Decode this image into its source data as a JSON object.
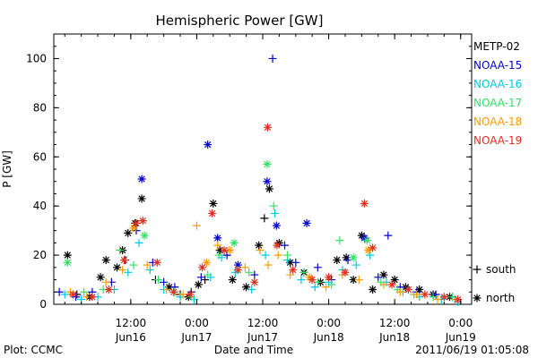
{
  "chart_data": {
    "type": "scatter",
    "title": "Hemispheric Power [GW]",
    "ylabel": "P [GW]",
    "xlabel": "Date and Time",
    "footer_left": "Plot: CCMC",
    "footer_right": "2011/06/19 01:05:08",
    "ylim": [
      0,
      110
    ],
    "yticks": [
      0,
      20,
      40,
      60,
      80,
      100
    ],
    "xlim_hours": [
      -2,
      74
    ],
    "xticks": [
      {
        "hours": 12,
        "time": "12:00",
        "date": "Jun16"
      },
      {
        "hours": 24,
        "time": "0:00",
        "date": "Jun17"
      },
      {
        "hours": 36,
        "time": "12:00",
        "date": "Jun17"
      },
      {
        "hours": 48,
        "time": "0:00",
        "date": "Jun18"
      },
      {
        "hours": 60,
        "time": "12:00",
        "date": "Jun18"
      },
      {
        "hours": 72,
        "time": "0:00",
        "date": "Jun19"
      }
    ],
    "x_axis_start": "2011-06-16 00:00 minus 2h",
    "marker_legend": [
      {
        "symbol": "+",
        "label": "south"
      },
      {
        "symbol": "*",
        "label": "north"
      }
    ],
    "legend_placement": "right",
    "series": [
      {
        "name": "METP-02",
        "color": "#000000",
        "points": [
          [
            0.5,
            20,
            "*"
          ],
          [
            2.2,
            4,
            "+"
          ],
          [
            4.5,
            3,
            "*"
          ],
          [
            6.5,
            11,
            "*"
          ],
          [
            7.5,
            18,
            "*"
          ],
          [
            9.5,
            15,
            "*"
          ],
          [
            10.5,
            22,
            "*"
          ],
          [
            11.5,
            29,
            "*"
          ],
          [
            12.8,
            33,
            "*"
          ],
          [
            14.0,
            43,
            "*"
          ],
          [
            16.5,
            10,
            "+"
          ],
          [
            19.0,
            7,
            "*"
          ],
          [
            21.0,
            4,
            "+"
          ],
          [
            22.5,
            3,
            "*"
          ],
          [
            24.3,
            8,
            "*"
          ],
          [
            25.5,
            10,
            "+"
          ],
          [
            27.0,
            41,
            "*"
          ],
          [
            28.2,
            22,
            "*"
          ],
          [
            30.5,
            10,
            "*"
          ],
          [
            33.0,
            7,
            "*"
          ],
          [
            35.3,
            24,
            "*"
          ],
          [
            36.3,
            35,
            "+"
          ],
          [
            37.2,
            47,
            "*"
          ],
          [
            39.0,
            25,
            "*"
          ],
          [
            41.0,
            17,
            "*"
          ],
          [
            43.5,
            13,
            "*"
          ],
          [
            46.5,
            9,
            "*"
          ],
          [
            49.5,
            18,
            "*"
          ],
          [
            51.2,
            19,
            "*"
          ],
          [
            52.5,
            10,
            "*"
          ],
          [
            54.0,
            28,
            "*"
          ],
          [
            56.0,
            6,
            "*"
          ],
          [
            58.0,
            12,
            "*"
          ],
          [
            60.0,
            10,
            "*"
          ],
          [
            62.0,
            7,
            "*"
          ],
          [
            64.5,
            6,
            "*"
          ],
          [
            67.0,
            4,
            "*"
          ],
          [
            70.0,
            3,
            "*"
          ]
        ]
      },
      {
        "name": "NOAA-15",
        "color": "#0000cc",
        "points": [
          [
            -1.0,
            5,
            "+"
          ],
          [
            2.0,
            3,
            "+"
          ],
          [
            5.0,
            5,
            "+"
          ],
          [
            8.5,
            9,
            "+"
          ],
          [
            11.0,
            18,
            "+"
          ],
          [
            13.0,
            30,
            "+"
          ],
          [
            14.0,
            51,
            "*"
          ],
          [
            16.0,
            17,
            "+"
          ],
          [
            18.0,
            9,
            "+"
          ],
          [
            20.0,
            7,
            "+"
          ],
          [
            23.0,
            5,
            "+"
          ],
          [
            24.8,
            11,
            "+"
          ],
          [
            26.0,
            65,
            "*"
          ],
          [
            27.8,
            27,
            "*"
          ],
          [
            29.5,
            20,
            "+"
          ],
          [
            31.5,
            16,
            "*"
          ],
          [
            34.5,
            12,
            "+"
          ],
          [
            36.8,
            50,
            "*"
          ],
          [
            37.8,
            100,
            "+"
          ],
          [
            38.5,
            32,
            "*"
          ],
          [
            40.0,
            24,
            "+"
          ],
          [
            42.0,
            17,
            "+"
          ],
          [
            44.0,
            33,
            "*"
          ],
          [
            46.0,
            15,
            "+"
          ],
          [
            48.5,
            10,
            "+"
          ],
          [
            51.5,
            18,
            "+"
          ],
          [
            54.5,
            27,
            "*"
          ],
          [
            57.0,
            11,
            "+"
          ],
          [
            58.8,
            28,
            "+"
          ],
          [
            61.0,
            7,
            "+"
          ],
          [
            64.0,
            5,
            "+"
          ],
          [
            67.5,
            4,
            "+"
          ],
          [
            70.5,
            3,
            "+"
          ]
        ]
      },
      {
        "name": "NOAA-16",
        "color": "#00c8e0",
        "points": [
          [
            0.0,
            4,
            "+"
          ],
          [
            3.0,
            2,
            "+"
          ],
          [
            6.0,
            3,
            "+"
          ],
          [
            9.0,
            6,
            "+"
          ],
          [
            11.5,
            13,
            "+"
          ],
          [
            13.5,
            25,
            "+"
          ],
          [
            15.5,
            14,
            "+"
          ],
          [
            18.0,
            6,
            "+"
          ],
          [
            21.0,
            3,
            "+"
          ],
          [
            23.5,
            2,
            "+"
          ],
          [
            26.5,
            11,
            "+"
          ],
          [
            28.5,
            19,
            "+"
          ],
          [
            31.0,
            13,
            "+"
          ],
          [
            34.0,
            6,
            "+"
          ],
          [
            36.5,
            20,
            "+"
          ],
          [
            38.2,
            37,
            "+"
          ],
          [
            40.5,
            18,
            "+"
          ],
          [
            43.0,
            10,
            "+"
          ],
          [
            45.5,
            7,
            "+"
          ],
          [
            48.0,
            9,
            "+"
          ],
          [
            50.5,
            14,
            "+"
          ],
          [
            53.0,
            16,
            "+"
          ],
          [
            55.5,
            20,
            "+"
          ],
          [
            58.5,
            9,
            "+"
          ],
          [
            61.5,
            5,
            "+"
          ],
          [
            64.5,
            3,
            "+"
          ],
          [
            68.5,
            2,
            "+"
          ],
          [
            71.5,
            1,
            "+"
          ]
        ]
      },
      {
        "name": "NOAA-17",
        "color": "#33e066",
        "points": [
          [
            0.5,
            17,
            "*"
          ],
          [
            3.5,
            5,
            "+"
          ],
          [
            7.0,
            6,
            "+"
          ],
          [
            10.0,
            22,
            "+"
          ],
          [
            12.5,
            16,
            "+"
          ],
          [
            14.5,
            28,
            "*"
          ],
          [
            17.0,
            10,
            "+"
          ],
          [
            20.0,
            5,
            "+"
          ],
          [
            23.0,
            3,
            "+"
          ],
          [
            26.0,
            12,
            "+"
          ],
          [
            28.0,
            20,
            "+"
          ],
          [
            30.8,
            25,
            "*"
          ],
          [
            33.5,
            13,
            "+"
          ],
          [
            36.8,
            57,
            "*"
          ],
          [
            38.0,
            40,
            "+"
          ],
          [
            40.5,
            20,
            "+"
          ],
          [
            43.5,
            13,
            "+"
          ],
          [
            46.0,
            9,
            "+"
          ],
          [
            48.5,
            8,
            "+"
          ],
          [
            50.0,
            26,
            "+"
          ],
          [
            52.5,
            19,
            "*"
          ],
          [
            55.0,
            26,
            "*"
          ],
          [
            57.5,
            9,
            "+"
          ],
          [
            60.5,
            6,
            "+"
          ],
          [
            63.5,
            4,
            "+"
          ],
          [
            67.0,
            3,
            "+"
          ],
          [
            70.5,
            3,
            "+"
          ]
        ]
      },
      {
        "name": "NOAA-18",
        "color": "#ff9900",
        "points": [
          [
            1.0,
            5,
            "+"
          ],
          [
            4.0,
            3,
            "+"
          ],
          [
            7.5,
            9,
            "+"
          ],
          [
            10.5,
            14,
            "+"
          ],
          [
            12.5,
            31,
            "*"
          ],
          [
            15.0,
            16,
            "+"
          ],
          [
            18.5,
            6,
            "+"
          ],
          [
            21.5,
            4,
            "+"
          ],
          [
            24.0,
            32,
            "+"
          ],
          [
            25.8,
            17,
            "*"
          ],
          [
            27.8,
            24,
            "+"
          ],
          [
            30.0,
            22,
            "*"
          ],
          [
            32.8,
            15,
            "+"
          ],
          [
            35.5,
            22,
            "+"
          ],
          [
            37.0,
            16,
            "+"
          ],
          [
            38.8,
            20,
            "+"
          ],
          [
            41.0,
            12,
            "+"
          ],
          [
            44.5,
            11,
            "*"
          ],
          [
            47.5,
            7,
            "+"
          ],
          [
            50.5,
            12,
            "+"
          ],
          [
            53.5,
            10,
            "+"
          ],
          [
            55.2,
            22,
            "*"
          ],
          [
            58.0,
            8,
            "+"
          ],
          [
            61.0,
            5,
            "+"
          ],
          [
            64.0,
            4,
            "+"
          ],
          [
            67.8,
            2,
            "+"
          ],
          [
            71.0,
            2,
            "+"
          ]
        ]
      },
      {
        "name": "NOAA-19",
        "color": "#e03020",
        "points": [
          [
            1.5,
            4,
            "*"
          ],
          [
            5.0,
            3,
            "*"
          ],
          [
            8.0,
            6,
            "*"
          ],
          [
            10.8,
            18,
            "*"
          ],
          [
            13.0,
            33,
            "*"
          ],
          [
            14.2,
            34,
            "*"
          ],
          [
            16.8,
            17,
            "*"
          ],
          [
            19.8,
            5,
            "*"
          ],
          [
            22.8,
            4,
            "*"
          ],
          [
            25.0,
            15,
            "*"
          ],
          [
            26.8,
            37,
            "*"
          ],
          [
            29.0,
            22,
            "*"
          ],
          [
            31.5,
            14,
            "*"
          ],
          [
            34.5,
            9,
            "*"
          ],
          [
            36.9,
            72,
            "*"
          ],
          [
            38.6,
            24,
            "*"
          ],
          [
            41.5,
            14,
            "*"
          ],
          [
            45.0,
            10,
            "*"
          ],
          [
            48.0,
            11,
            "*"
          ],
          [
            51.0,
            13,
            "*"
          ],
          [
            54.5,
            41,
            "*"
          ],
          [
            56.0,
            23,
            "*"
          ],
          [
            59.5,
            8,
            "*"
          ],
          [
            62.5,
            6,
            "*"
          ],
          [
            65.5,
            4,
            "*"
          ],
          [
            69.0,
            3,
            "*"
          ],
          [
            71.5,
            2,
            "*"
          ]
        ]
      }
    ]
  }
}
